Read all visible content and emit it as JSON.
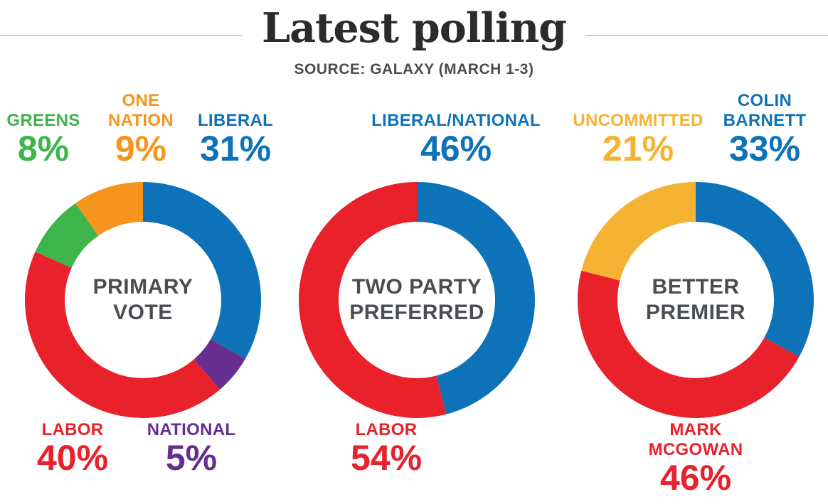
{
  "title": "Latest polling",
  "source": "SOURCE: GALAXY (MARCH 1-3)",
  "colors": {
    "liberal_blue": "#0e72b8",
    "labor_red": "#e8212b",
    "greens_green": "#3db54a",
    "one_nation_orange": "#f7941e",
    "national_purple": "#672e91",
    "uncommitted_amber": "#f6b233",
    "title_ink": "#2b2b2b",
    "source_gray": "#4d4d4f",
    "center_label_gray": "#4a4d52",
    "divider_gray": "#cccccc"
  },
  "chart_data": [
    {
      "type": "pie",
      "subtype": "donut",
      "title": "PRIMARY VOTE",
      "center_label": "PRIMARY\nVOTE",
      "start_angle_deg": 0,
      "direction": "clockwise",
      "segments": [
        {
          "label": "LIBERAL",
          "value": 31,
          "color": "#0e72b8"
        },
        {
          "label": "NATIONAL",
          "value": 5,
          "color": "#672e91"
        },
        {
          "label": "LABOR",
          "value": 40,
          "color": "#e8212b"
        },
        {
          "label": "GREENS",
          "value": 8,
          "color": "#3db54a"
        },
        {
          "label": "ONE NATION",
          "value": 9,
          "color": "#f7941e"
        }
      ],
      "callouts": [
        {
          "name": "GREENS",
          "pct": "8%",
          "color": "#3db54a"
        },
        {
          "name": "ONE\nNATION",
          "pct": "9%",
          "color": "#f7941e"
        },
        {
          "name": "LIBERAL",
          "pct": "31%",
          "color": "#0e72b8"
        },
        {
          "name": "LABOR",
          "pct": "40%",
          "color": "#e8212b"
        },
        {
          "name": "NATIONAL",
          "pct": "5%",
          "color": "#672e91"
        }
      ]
    },
    {
      "type": "pie",
      "subtype": "donut",
      "title": "TWO PARTY PREFERRED",
      "center_label": "TWO PARTY\nPREFERRED",
      "start_angle_deg": 0,
      "direction": "clockwise",
      "segments": [
        {
          "label": "LIBERAL/NATIONAL",
          "value": 46,
          "color": "#0e72b8"
        },
        {
          "label": "LABOR",
          "value": 54,
          "color": "#e8212b"
        }
      ],
      "callouts": [
        {
          "name": "LIBERAL/NATIONAL",
          "pct": "46%",
          "color": "#0e72b8"
        },
        {
          "name": "LABOR",
          "pct": "54%",
          "color": "#e8212b"
        }
      ]
    },
    {
      "type": "pie",
      "subtype": "donut",
      "title": "BETTER PREMIER",
      "center_label": "BETTER\nPREMIER",
      "start_angle_deg": 0,
      "direction": "clockwise",
      "segments": [
        {
          "label": "COLIN BARNETT",
          "value": 33,
          "color": "#0e72b8"
        },
        {
          "label": "MARK MCGOWAN",
          "value": 46,
          "color": "#e8212b"
        },
        {
          "label": "UNCOMMITTED",
          "value": 21,
          "color": "#f6b233"
        }
      ],
      "callouts": [
        {
          "name": "UNCOMMITTED",
          "pct": "21%",
          "color": "#f6b233"
        },
        {
          "name": "COLIN\nBARNETT",
          "pct": "33%",
          "color": "#0e72b8"
        },
        {
          "name": "MARK MCGOWAN",
          "pct": "46%",
          "color": "#e8212b"
        }
      ]
    }
  ]
}
